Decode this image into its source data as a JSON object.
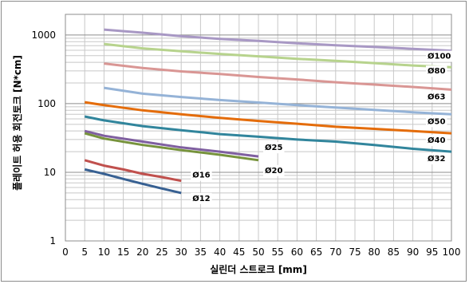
{
  "chart_data": {
    "type": "line",
    "title": "",
    "xlabel": "실린더 스트로크 [mm]",
    "ylabel": "플레이트 허용 회전토크 [N*cm]",
    "xlim": [
      0,
      100
    ],
    "ylim": [
      1,
      2000
    ],
    "y_scale": "log",
    "x_ticks": [
      "0",
      "5",
      "10",
      "15",
      "20",
      "25",
      "30",
      "35",
      "40",
      "45",
      "50",
      "55",
      "60",
      "65",
      "70",
      "75",
      "80",
      "85",
      "90",
      "95",
      "100"
    ],
    "y_ticks": [
      {
        "value": 1,
        "label": "1"
      },
      {
        "value": 10,
        "label": "10"
      },
      {
        "value": 100,
        "label": "100"
      },
      {
        "value": 1000,
        "label": "1000"
      }
    ],
    "grid": true,
    "colors": {
      "ø100": "#a898c4",
      "ø80": "#b7d38d",
      "ø63": "#d99694",
      "ø50": "#95b3d7",
      "ø40": "#e46c0a",
      "ø32": "#31859c",
      "ø25": "#7f5fa0",
      "ø20": "#77933c",
      "ø16": "#c0504d",
      "ø12": "#376092"
    },
    "series": [
      {
        "name": "Ø100",
        "color_key": "ø100",
        "x": [
          10,
          20,
          30,
          40,
          50,
          60,
          70,
          80,
          90,
          100
        ],
        "y": [
          1200,
          1080,
          960,
          880,
          820,
          760,
          710,
          670,
          630,
          590
        ]
      },
      {
        "name": "Ø80",
        "color_key": "ø80",
        "x": [
          10,
          20,
          30,
          40,
          50,
          60,
          70,
          80,
          90,
          100
        ],
        "y": [
          740,
          640,
          580,
          530,
          490,
          450,
          420,
          390,
          360,
          340
        ]
      },
      {
        "name": "Ø63",
        "color_key": "ø63",
        "x": [
          10,
          20,
          30,
          40,
          50,
          60,
          70,
          80,
          90,
          100
        ],
        "y": [
          385,
          330,
          295,
          270,
          245,
          225,
          205,
          190,
          175,
          160
        ]
      },
      {
        "name": "Ø50",
        "color_key": "ø50",
        "x": [
          10,
          20,
          30,
          40,
          50,
          60,
          70,
          80,
          90,
          100
        ],
        "y": [
          170,
          140,
          125,
          113,
          104,
          95,
          88,
          81,
          75,
          70
        ]
      },
      {
        "name": "Ø40",
        "color_key": "ø40",
        "x": [
          5,
          10,
          20,
          30,
          40,
          50,
          60,
          70,
          80,
          90,
          100
        ],
        "y": [
          105,
          95,
          80,
          70,
          62,
          56,
          51,
          46,
          43,
          40,
          37
        ]
      },
      {
        "name": "Ø32",
        "color_key": "ø32",
        "x": [
          5,
          10,
          20,
          30,
          40,
          50,
          60,
          70,
          80,
          90,
          100
        ],
        "y": [
          65,
          57,
          47,
          41,
          36,
          33,
          30,
          28,
          25,
          22,
          20
        ]
      },
      {
        "name": "Ø25",
        "color_key": "ø25",
        "x": [
          5,
          10,
          20,
          30,
          40,
          50
        ],
        "y": [
          40,
          34,
          28,
          23,
          20,
          17
        ]
      },
      {
        "name": "Ø20",
        "color_key": "ø20",
        "x": [
          5,
          10,
          20,
          30,
          40,
          50
        ],
        "y": [
          37,
          31,
          25,
          21,
          18,
          15
        ]
      },
      {
        "name": "Ø16",
        "color_key": "ø16",
        "x": [
          5,
          10,
          15,
          20,
          25,
          30
        ],
        "y": [
          15,
          12.5,
          11,
          9.5,
          8.5,
          7.5
        ]
      },
      {
        "name": "Ø12",
        "color_key": "ø12",
        "x": [
          5,
          10,
          15,
          20,
          25,
          30
        ],
        "y": [
          11,
          9.5,
          8,
          6.8,
          5.8,
          5
        ]
      }
    ]
  }
}
